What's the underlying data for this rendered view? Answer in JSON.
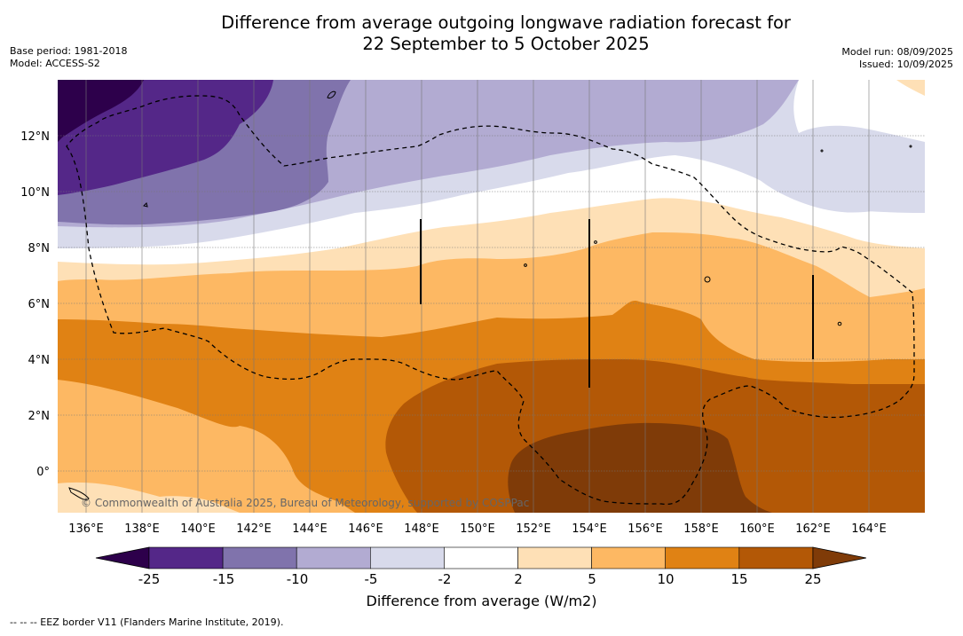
{
  "title": {
    "line1": "Difference from average outgoing longwave radiation forecast for",
    "line2": "22 September to 5 October 2025"
  },
  "meta_left": {
    "base_period": "Base period: 1981-2018",
    "model": "Model: ACCESS-S2"
  },
  "meta_right": {
    "model_run": "Model run: 08/09/2025",
    "issued": "Issued: 10/09/2025"
  },
  "map": {
    "lat_range": [
      -1.5,
      14
    ],
    "lon_range": [
      135,
      166
    ],
    "lat_ticks": [
      "12°N",
      "10°N",
      "8°N",
      "6°N",
      "4°N",
      "2°N",
      "0°"
    ],
    "lon_ticks": [
      "136°E",
      "138°E",
      "140°E",
      "142°E",
      "144°E",
      "146°E",
      "148°E",
      "150°E",
      "152°E",
      "154°E",
      "156°E",
      "158°E",
      "160°E",
      "162°E",
      "164°E"
    ],
    "copyright": "© Commonwealth of Australia 2025, Bureau of Meteorology, supported by COSPPac"
  },
  "colorbar": {
    "colors": [
      "#2d004b",
      "#542788",
      "#8073ac",
      "#b2abd2",
      "#d8daeb",
      "#ffffff",
      "#fee0b6",
      "#fdb863",
      "#e08214",
      "#b35806",
      "#7f3b08"
    ],
    "tick_labels": [
      "-25",
      "-15",
      "-10",
      "-5",
      "-2",
      "2",
      "5",
      "10",
      "15",
      "25"
    ],
    "label": "Difference from average (W/m2)"
  },
  "footnote": "-- -- -- EEZ border V11 (Flanders Marine Institute, 2019)."
}
